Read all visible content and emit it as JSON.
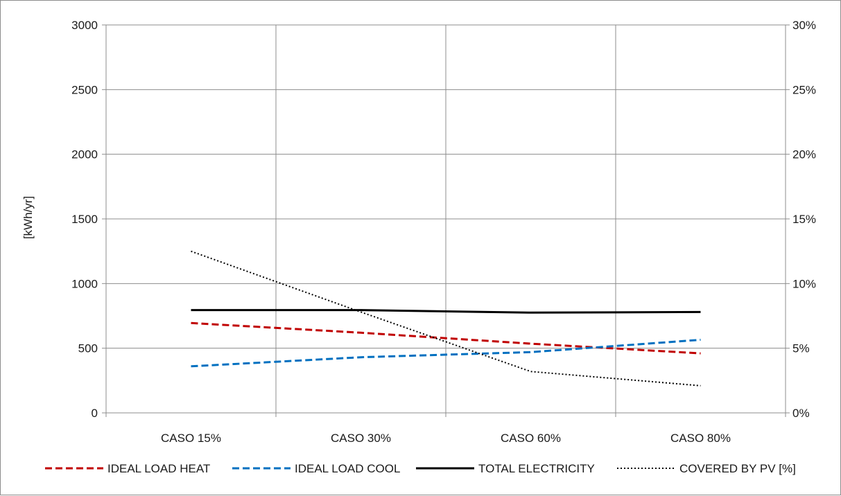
{
  "chart_data": {
    "type": "line",
    "title": "",
    "categories": [
      "CASO 15%",
      "CASO 30%",
      "CASO 60%",
      "CASO 80%"
    ],
    "ylabel": "[kWh/yr]",
    "ylim": [
      0,
      3000
    ],
    "yticks": [
      "0",
      "500",
      "1000",
      "1500",
      "2000",
      "2500",
      "3000"
    ],
    "y2lim": [
      0,
      30
    ],
    "y2ticks": [
      "0%",
      "5%",
      "10%",
      "15%",
      "20%",
      "25%",
      "30%"
    ],
    "grid": true,
    "legend_position": "bottom",
    "series": [
      {
        "name": "IDEAL LOAD HEAT",
        "axis": "left",
        "values": [
          695,
          620,
          535,
          460
        ],
        "color": "#c00000",
        "dash": "dashed"
      },
      {
        "name": "IDEAL LOAD COOL",
        "axis": "left",
        "values": [
          360,
          430,
          470,
          565
        ],
        "color": "#0070c0",
        "dash": "dashed"
      },
      {
        "name": "TOTAL ELECTRICITY",
        "axis": "left",
        "values": [
          795,
          795,
          775,
          780
        ],
        "color": "#000000",
        "dash": "solid"
      },
      {
        "name": "COVERED BY PV [%]",
        "axis": "right",
        "values": [
          12.5,
          7.8,
          3.2,
          2.1
        ],
        "color": "#000000",
        "dash": "dotted"
      }
    ]
  }
}
